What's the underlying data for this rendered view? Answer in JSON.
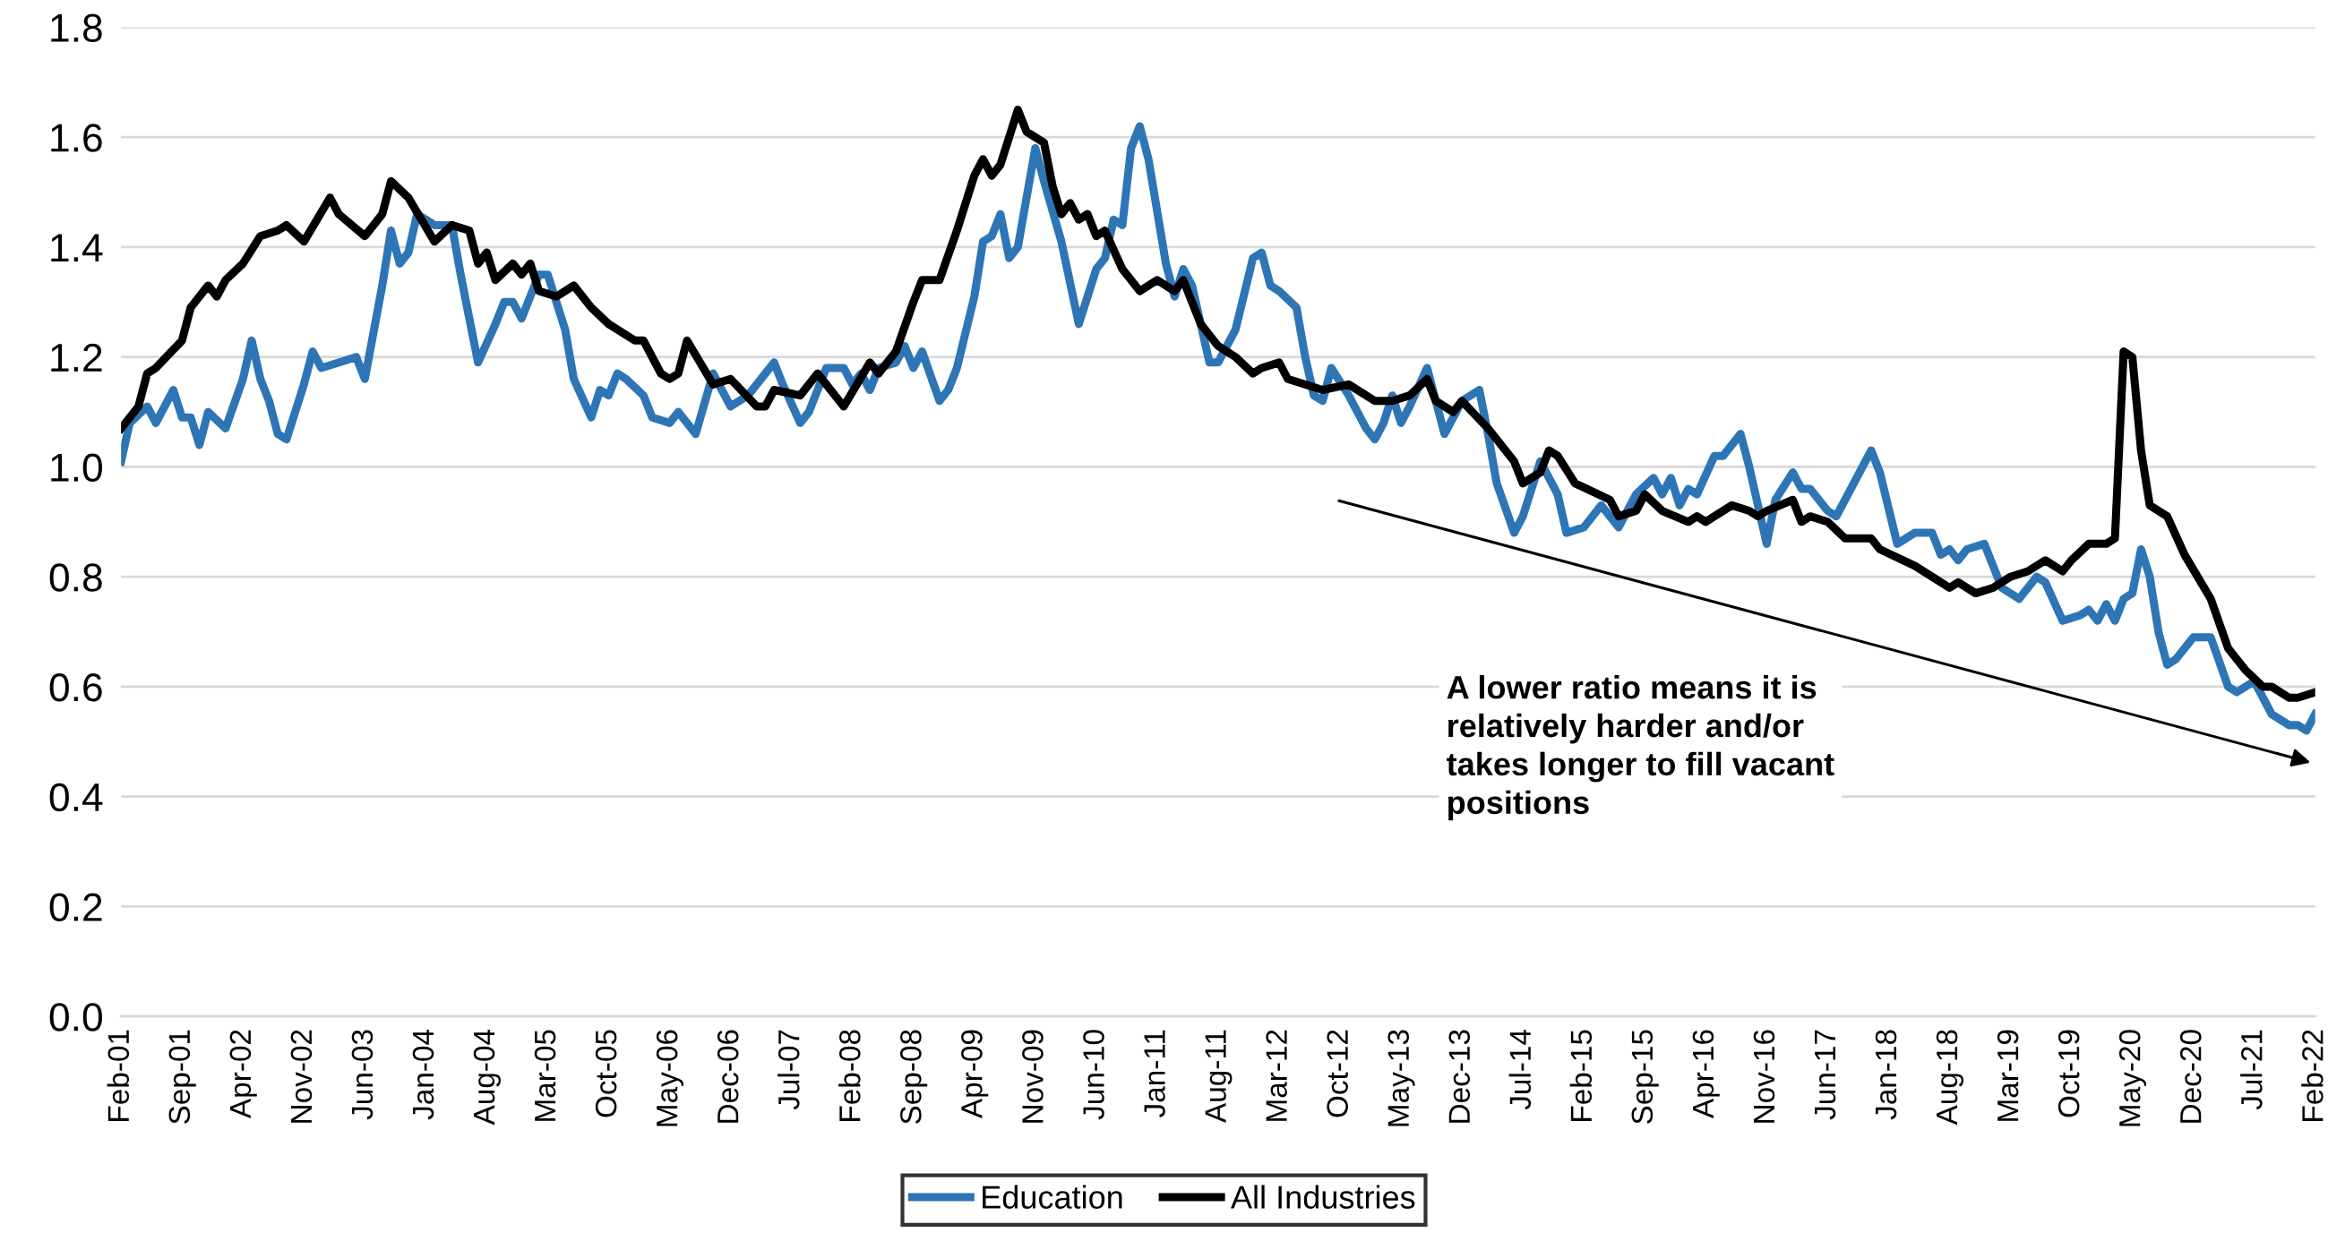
{
  "chart_data": {
    "type": "line",
    "ylim": [
      0,
      1.8
    ],
    "yticks": [
      {
        "value": 0,
        "label": "0.0"
      },
      {
        "value": 0.2,
        "label": "0.2"
      },
      {
        "value": 0.4,
        "label": "0.4"
      },
      {
        "value": 0.6,
        "label": "0.6"
      },
      {
        "value": 0.8,
        "label": "0.8"
      },
      {
        "value": 1.0,
        "label": "1.0"
      },
      {
        "value": 1.2,
        "label": "1.2"
      },
      {
        "value": 1.4,
        "label": "1.4"
      },
      {
        "value": 1.6,
        "label": "1.6"
      },
      {
        "value": 1.8,
        "label": "1.8"
      }
    ],
    "xlim": [
      "2001-02",
      "2022-02"
    ],
    "xticks": [
      {
        "value": "2001-02",
        "label": "Feb-01"
      },
      {
        "value": "2001-09",
        "label": "Sep-01"
      },
      {
        "value": "2002-04",
        "label": "Apr-02"
      },
      {
        "value": "2002-11",
        "label": "Nov-02"
      },
      {
        "value": "2003-06",
        "label": "Jun-03"
      },
      {
        "value": "2004-01",
        "label": "Jan-04"
      },
      {
        "value": "2004-08",
        "label": "Aug-04"
      },
      {
        "value": "2005-03",
        "label": "Mar-05"
      },
      {
        "value": "2005-10",
        "label": "Oct-05"
      },
      {
        "value": "2006-05",
        "label": "May-06"
      },
      {
        "value": "2006-12",
        "label": "Dec-06"
      },
      {
        "value": "2007-07",
        "label": "Jul-07"
      },
      {
        "value": "2008-02",
        "label": "Feb-08"
      },
      {
        "value": "2008-09",
        "label": "Sep-08"
      },
      {
        "value": "2009-04",
        "label": "Apr-09"
      },
      {
        "value": "2009-11",
        "label": "Nov-09"
      },
      {
        "value": "2010-06",
        "label": "Jun-10"
      },
      {
        "value": "2011-01",
        "label": "Jan-11"
      },
      {
        "value": "2011-08",
        "label": "Aug-11"
      },
      {
        "value": "2012-03",
        "label": "Mar-12"
      },
      {
        "value": "2012-10",
        "label": "Oct-12"
      },
      {
        "value": "2013-05",
        "label": "May-13"
      },
      {
        "value": "2013-12",
        "label": "Dec-13"
      },
      {
        "value": "2014-07",
        "label": "Jul-14"
      },
      {
        "value": "2015-02",
        "label": "Feb-15"
      },
      {
        "value": "2015-09",
        "label": "Sep-15"
      },
      {
        "value": "2016-04",
        "label": "Apr-16"
      },
      {
        "value": "2016-11",
        "label": "Nov-16"
      },
      {
        "value": "2017-06",
        "label": "Jun-17"
      },
      {
        "value": "2018-01",
        "label": "Jan-18"
      },
      {
        "value": "2018-08",
        "label": "Aug-18"
      },
      {
        "value": "2019-03",
        "label": "Mar-19"
      },
      {
        "value": "2019-10",
        "label": "Oct-19"
      },
      {
        "value": "2020-05",
        "label": "May-20"
      },
      {
        "value": "2020-12",
        "label": "Dec-20"
      },
      {
        "value": "2021-07",
        "label": "Jul-21"
      },
      {
        "value": "2022-02",
        "label": "Feb-22"
      }
    ],
    "grid": "y",
    "legend": "bottom",
    "marker": "none",
    "line_style": "solid",
    "annotations": [
      "A lower ratio means it is\nrelatively harder and/or\ntakes longer to fill vacant\npositions"
    ],
    "series": [
      {
        "name": "Education",
        "color": "#2e75b6",
        "x": [
          "2001-02",
          "2001-03",
          "2001-05",
          "2001-06",
          "2001-08",
          "2001-09",
          "2001-10",
          "2001-11",
          "2001-12",
          "2002-02",
          "2002-04",
          "2002-05",
          "2002-06",
          "2002-07",
          "2002-08",
          "2002-09",
          "2002-11",
          "2002-12",
          "2003-01",
          "2003-05",
          "2003-06",
          "2003-08",
          "2003-09",
          "2003-10",
          "2003-11",
          "2003-12",
          "2004-02",
          "2004-04",
          "2004-05",
          "2004-07",
          "2004-09",
          "2004-10",
          "2004-11",
          "2004-12",
          "2005-02",
          "2005-03",
          "2005-05",
          "2005-06",
          "2005-08",
          "2005-09",
          "2005-10",
          "2005-11",
          "2005-12",
          "2006-02",
          "2006-03",
          "2006-05",
          "2006-06",
          "2006-08",
          "2006-10",
          "2006-12",
          "2007-02",
          "2007-05",
          "2007-06",
          "2007-08",
          "2007-09",
          "2007-11",
          "2008-01",
          "2008-02",
          "2008-03",
          "2008-04",
          "2008-05",
          "2008-07",
          "2008-08",
          "2008-09",
          "2008-10",
          "2008-12",
          "2009-01",
          "2009-02",
          "2009-04",
          "2009-05",
          "2009-06",
          "2009-07",
          "2009-08",
          "2009-09",
          "2009-11",
          "2009-12",
          "2010-02",
          "2010-04",
          "2010-06",
          "2010-07",
          "2010-08",
          "2010-09",
          "2010-10",
          "2010-11",
          "2010-12",
          "2011-02",
          "2011-03",
          "2011-04",
          "2011-05",
          "2011-07",
          "2011-08",
          "2011-10",
          "2011-12",
          "2012-01",
          "2012-02",
          "2012-03",
          "2012-05",
          "2012-06",
          "2012-07",
          "2012-08",
          "2012-09",
          "2012-11",
          "2013-01",
          "2013-02",
          "2013-03",
          "2013-04",
          "2013-05",
          "2013-06",
          "2013-08",
          "2013-10",
          "2013-12",
          "2014-02",
          "2014-03",
          "2014-04",
          "2014-06",
          "2014-07",
          "2014-09",
          "2014-11",
          "2014-12",
          "2015-02",
          "2015-04",
          "2015-06",
          "2015-08",
          "2015-10",
          "2015-11",
          "2015-12",
          "2016-01",
          "2016-02",
          "2016-03",
          "2016-05",
          "2016-06",
          "2016-08",
          "2016-09",
          "2016-11",
          "2016-12",
          "2017-02",
          "2017-03",
          "2017-04",
          "2017-06",
          "2017-07",
          "2017-09",
          "2017-11",
          "2017-12",
          "2018-02",
          "2018-04",
          "2018-06",
          "2018-07",
          "2018-08",
          "2018-09",
          "2018-10",
          "2018-12",
          "2019-02",
          "2019-04",
          "2019-06",
          "2019-07",
          "2019-09",
          "2019-11",
          "2019-12",
          "2020-01",
          "2020-02",
          "2020-03",
          "2020-04",
          "2020-05",
          "2020-06",
          "2020-07",
          "2020-08",
          "2020-09",
          "2020-10",
          "2020-12",
          "2021-02",
          "2021-04",
          "2021-05",
          "2021-07",
          "2021-09",
          "2021-11",
          "2021-12",
          "2022-01",
          "2022-02"
        ],
        "values": [
          1.01,
          1.08,
          1.11,
          1.08,
          1.14,
          1.09,
          1.09,
          1.04,
          1.1,
          1.07,
          1.16,
          1.23,
          1.16,
          1.12,
          1.06,
          1.05,
          1.15,
          1.21,
          1.18,
          1.2,
          1.16,
          1.33,
          1.43,
          1.37,
          1.39,
          1.46,
          1.44,
          1.44,
          1.35,
          1.19,
          1.26,
          1.3,
          1.3,
          1.27,
          1.35,
          1.35,
          1.25,
          1.16,
          1.09,
          1.14,
          1.13,
          1.17,
          1.16,
          1.13,
          1.09,
          1.08,
          1.1,
          1.06,
          1.17,
          1.11,
          1.13,
          1.19,
          1.15,
          1.08,
          1.1,
          1.18,
          1.18,
          1.15,
          1.17,
          1.14,
          1.18,
          1.19,
          1.22,
          1.18,
          1.21,
          1.12,
          1.14,
          1.18,
          1.31,
          1.41,
          1.42,
          1.46,
          1.38,
          1.4,
          1.58,
          1.52,
          1.41,
          1.26,
          1.36,
          1.38,
          1.45,
          1.44,
          1.58,
          1.62,
          1.56,
          1.37,
          1.31,
          1.36,
          1.33,
          1.19,
          1.19,
          1.25,
          1.38,
          1.39,
          1.33,
          1.32,
          1.29,
          1.2,
          1.13,
          1.12,
          1.18,
          1.13,
          1.07,
          1.05,
          1.08,
          1.13,
          1.08,
          1.11,
          1.18,
          1.06,
          1.12,
          1.14,
          1.06,
          0.97,
          0.88,
          0.91,
          1.01,
          0.95,
          0.88,
          0.89,
          0.93,
          0.89,
          0.95,
          0.98,
          0.95,
          0.98,
          0.93,
          0.96,
          0.95,
          1.02,
          1.02,
          1.06,
          1.0,
          0.86,
          0.94,
          0.99,
          0.96,
          0.96,
          0.92,
          0.91,
          0.97,
          1.03,
          0.99,
          0.86,
          0.88,
          0.88,
          0.84,
          0.85,
          0.83,
          0.85,
          0.86,
          0.78,
          0.76,
          0.8,
          0.79,
          0.72,
          0.73,
          0.74,
          0.72,
          0.75,
          0.72,
          0.76,
          0.77,
          0.85,
          0.8,
          0.7,
          0.64,
          0.65,
          0.69,
          0.69,
          0.6,
          0.59,
          0.61,
          0.55,
          0.53,
          0.53,
          0.52,
          0.55
        ]
      },
      {
        "name": "All Industries",
        "color": "#000000",
        "x": [
          "2001-02",
          "2001-04",
          "2001-05",
          "2001-06",
          "2001-09",
          "2001-10",
          "2001-12",
          "2002-01",
          "2002-02",
          "2002-04",
          "2002-06",
          "2002-08",
          "2002-09",
          "2002-11",
          "2003-02",
          "2003-03",
          "2003-06",
          "2003-08",
          "2003-09",
          "2003-11",
          "2004-02",
          "2004-04",
          "2004-06",
          "2004-07",
          "2004-08",
          "2004-09",
          "2004-11",
          "2004-12",
          "2005-01",
          "2005-02",
          "2005-04",
          "2005-06",
          "2005-08",
          "2005-10",
          "2006-01",
          "2006-02",
          "2006-04",
          "2006-05",
          "2006-06",
          "2006-07",
          "2006-10",
          "2006-12",
          "2007-03",
          "2007-04",
          "2007-05",
          "2007-08",
          "2007-10",
          "2008-01",
          "2008-04",
          "2008-05",
          "2008-07",
          "2008-09",
          "2008-10",
          "2008-12",
          "2009-02",
          "2009-04",
          "2009-05",
          "2009-06",
          "2009-07",
          "2009-09",
          "2009-10",
          "2009-12",
          "2010-01",
          "2010-02",
          "2010-03",
          "2010-04",
          "2010-05",
          "2010-06",
          "2010-07",
          "2010-09",
          "2010-11",
          "2011-01",
          "2011-03",
          "2011-04",
          "2011-06",
          "2011-08",
          "2011-10",
          "2011-12",
          "2012-01",
          "2012-03",
          "2012-04",
          "2012-08",
          "2012-11",
          "2013-02",
          "2013-04",
          "2013-06",
          "2013-08",
          "2013-09",
          "2013-11",
          "2013-12",
          "2014-03",
          "2014-05",
          "2014-06",
          "2014-07",
          "2014-09",
          "2014-10",
          "2014-11",
          "2015-01",
          "2015-05",
          "2015-06",
          "2015-08",
          "2015-09",
          "2015-11",
          "2016-02",
          "2016-03",
          "2016-04",
          "2016-05",
          "2016-07",
          "2016-09",
          "2016-10",
          "2016-11",
          "2017-02",
          "2017-03",
          "2017-04",
          "2017-06",
          "2017-08",
          "2017-11",
          "2017-12",
          "2018-04",
          "2018-06",
          "2018-08",
          "2018-09",
          "2018-11",
          "2019-01",
          "2019-03",
          "2019-05",
          "2019-07",
          "2019-09",
          "2019-10",
          "2019-12",
          "2020-02",
          "2020-03",
          "2020-04",
          "2020-05",
          "2020-06",
          "2020-07",
          "2020-09",
          "2020-11",
          "2021-02",
          "2021-04",
          "2021-06",
          "2021-08",
          "2021-09",
          "2021-11",
          "2021-12",
          "2022-02"
        ],
        "values": [
          1.07,
          1.11,
          1.17,
          1.18,
          1.23,
          1.29,
          1.33,
          1.31,
          1.34,
          1.37,
          1.42,
          1.43,
          1.44,
          1.41,
          1.49,
          1.46,
          1.42,
          1.46,
          1.52,
          1.49,
          1.41,
          1.44,
          1.43,
          1.37,
          1.39,
          1.34,
          1.37,
          1.35,
          1.37,
          1.32,
          1.31,
          1.33,
          1.29,
          1.26,
          1.23,
          1.23,
          1.17,
          1.16,
          1.17,
          1.23,
          1.15,
          1.16,
          1.11,
          1.11,
          1.14,
          1.13,
          1.17,
          1.11,
          1.19,
          1.17,
          1.21,
          1.3,
          1.34,
          1.34,
          1.43,
          1.53,
          1.56,
          1.53,
          1.55,
          1.65,
          1.61,
          1.59,
          1.51,
          1.46,
          1.48,
          1.45,
          1.46,
          1.42,
          1.43,
          1.36,
          1.32,
          1.34,
          1.32,
          1.34,
          1.26,
          1.22,
          1.2,
          1.17,
          1.18,
          1.19,
          1.16,
          1.14,
          1.15,
          1.12,
          1.12,
          1.13,
          1.16,
          1.12,
          1.1,
          1.12,
          1.07,
          1.03,
          1.01,
          0.97,
          0.99,
          1.03,
          1.02,
          0.97,
          0.94,
          0.91,
          0.92,
          0.95,
          0.92,
          0.9,
          0.91,
          0.9,
          0.91,
          0.93,
          0.92,
          0.91,
          0.92,
          0.94,
          0.9,
          0.91,
          0.9,
          0.87,
          0.87,
          0.85,
          0.82,
          0.8,
          0.78,
          0.79,
          0.77,
          0.78,
          0.8,
          0.81,
          0.83,
          0.81,
          0.83,
          0.86,
          0.86,
          0.87,
          1.21,
          1.2,
          1.03,
          0.93,
          0.91,
          0.84,
          0.76,
          0.67,
          0.63,
          0.6,
          0.6,
          0.58,
          0.58,
          0.59
        ]
      }
    ]
  }
}
